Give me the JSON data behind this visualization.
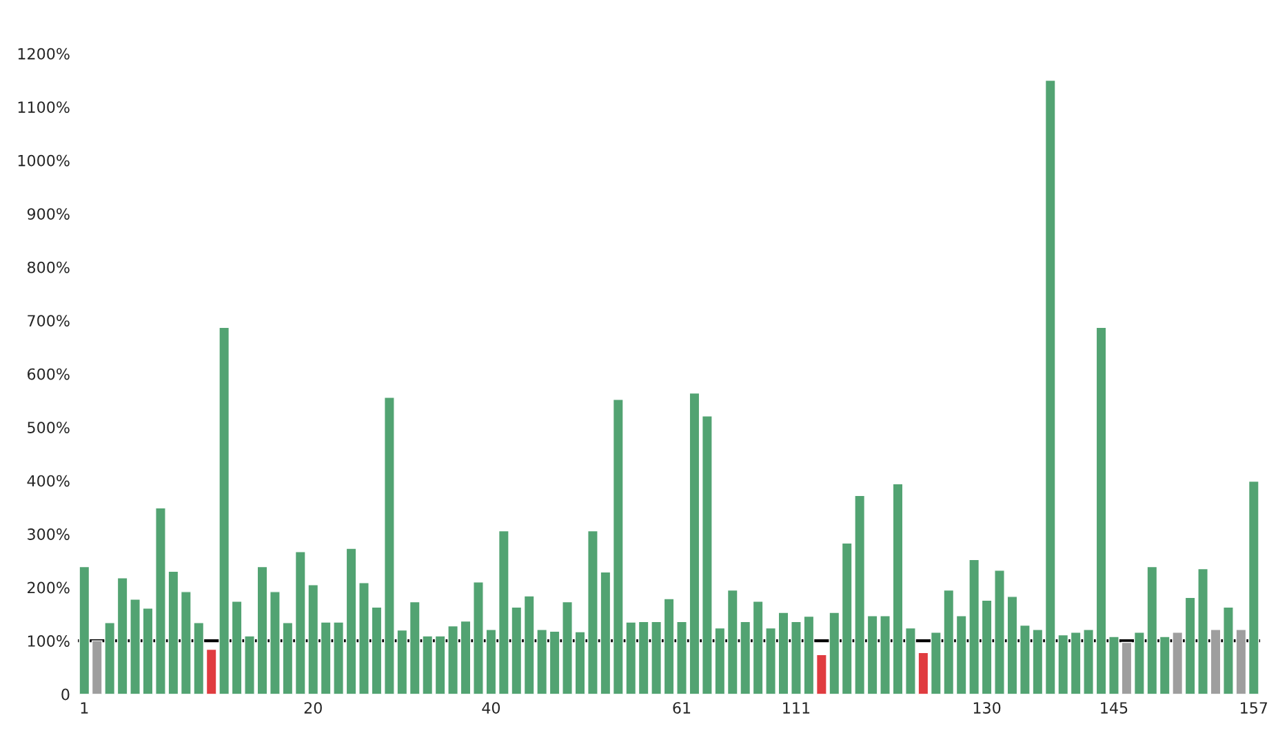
{
  "chart_data": {
    "type": "bar",
    "categories": [
      "1",
      null,
      null,
      null,
      null,
      null,
      null,
      null,
      null,
      null,
      null,
      null,
      null,
      null,
      null,
      null,
      null,
      null,
      "20",
      null,
      null,
      null,
      null,
      null,
      null,
      null,
      null,
      null,
      null,
      null,
      null,
      null,
      "40",
      null,
      null,
      null,
      null,
      null,
      null,
      null,
      null,
      null,
      null,
      null,
      null,
      null,
      null,
      "61",
      null,
      null,
      null,
      null,
      null,
      null,
      null,
      null,
      "111",
      null,
      null,
      null,
      null,
      null,
      null,
      null,
      null,
      null,
      null,
      null,
      null,
      null,
      null,
      "130",
      null,
      null,
      null,
      null,
      null,
      null,
      null,
      null,
      null,
      "145",
      null,
      null,
      null,
      null,
      null,
      null,
      null,
      null,
      null,
      null,
      "157"
    ],
    "values": [
      239,
      100,
      134,
      218,
      178,
      161,
      349,
      230,
      192,
      134,
      84,
      687,
      174,
      109,
      239,
      192,
      134,
      267,
      205,
      135,
      135,
      273,
      209,
      163,
      556,
      120,
      173,
      109,
      109,
      128,
      137,
      210,
      121,
      306,
      163,
      184,
      121,
      118,
      173,
      117,
      306,
      229,
      552,
      135,
      136,
      136,
      179,
      136,
      564,
      521,
      124,
      195,
      136,
      174,
      124,
      153,
      136,
      146,
      74,
      153,
      283,
      372,
      147,
      147,
      394,
      124,
      78,
      116,
      195,
      147,
      252,
      176,
      232,
      183,
      129,
      121,
      1150,
      111,
      116,
      121,
      687,
      108,
      97,
      116,
      239,
      108,
      116,
      181,
      235,
      121,
      163,
      121,
      399
    ],
    "colors": [
      "#52a372",
      "#9e9e9e",
      "#52a372",
      "#52a372",
      "#52a372",
      "#52a372",
      "#52a372",
      "#52a372",
      "#52a372",
      "#52a372",
      "#e03c40",
      "#52a372",
      "#52a372",
      "#52a372",
      "#52a372",
      "#52a372",
      "#52a372",
      "#52a372",
      "#52a372",
      "#52a372",
      "#52a372",
      "#52a372",
      "#52a372",
      "#52a372",
      "#52a372",
      "#52a372",
      "#52a372",
      "#52a372",
      "#52a372",
      "#52a372",
      "#52a372",
      "#52a372",
      "#52a372",
      "#52a372",
      "#52a372",
      "#52a372",
      "#52a372",
      "#52a372",
      "#52a372",
      "#52a372",
      "#52a372",
      "#52a372",
      "#52a372",
      "#52a372",
      "#52a372",
      "#52a372",
      "#52a372",
      "#52a372",
      "#52a372",
      "#52a372",
      "#52a372",
      "#52a372",
      "#52a372",
      "#52a372",
      "#52a372",
      "#52a372",
      "#52a372",
      "#52a372",
      "#e03c40",
      "#52a372",
      "#52a372",
      "#52a372",
      "#52a372",
      "#52a372",
      "#52a372",
      "#52a372",
      "#e03c40",
      "#52a372",
      "#52a372",
      "#52a372",
      "#52a372",
      "#52a372",
      "#52a372",
      "#52a372",
      "#52a372",
      "#52a372",
      "#52a372",
      "#52a372",
      "#52a372",
      "#52a372",
      "#52a372",
      "#52a372",
      "#9e9e9e",
      "#52a372",
      "#52a372",
      "#52a372",
      "#9e9e9e",
      "#52a372",
      "#52a372",
      "#9e9e9e",
      "#52a372",
      "#9e9e9e",
      "#52a372"
    ],
    "ylim": [
      0,
      1200
    ],
    "yticks": [
      0,
      {
        "value": 100,
        "label": "100%"
      },
      {
        "value": 200,
        "label": "200%"
      },
      {
        "value": 300,
        "label": "300%"
      },
      {
        "value": 400,
        "label": "400%"
      },
      {
        "value": 500,
        "label": "500%"
      },
      {
        "value": 600,
        "label": "600%"
      },
      {
        "value": 700,
        "label": "700%"
      },
      {
        "value": 800,
        "label": "800%"
      },
      {
        "value": 900,
        "label": "900%"
      },
      {
        "value": 1000,
        "label": "1000%"
      },
      {
        "value": 1100,
        "label": "1100%"
      },
      {
        "value": 1200,
        "label": "1200%"
      }
    ],
    "ref_lines": [
      {
        "axis": "y",
        "value": 100,
        "color": "#000000",
        "line_style": "solid"
      }
    ],
    "grid": false,
    "legend": false
  }
}
